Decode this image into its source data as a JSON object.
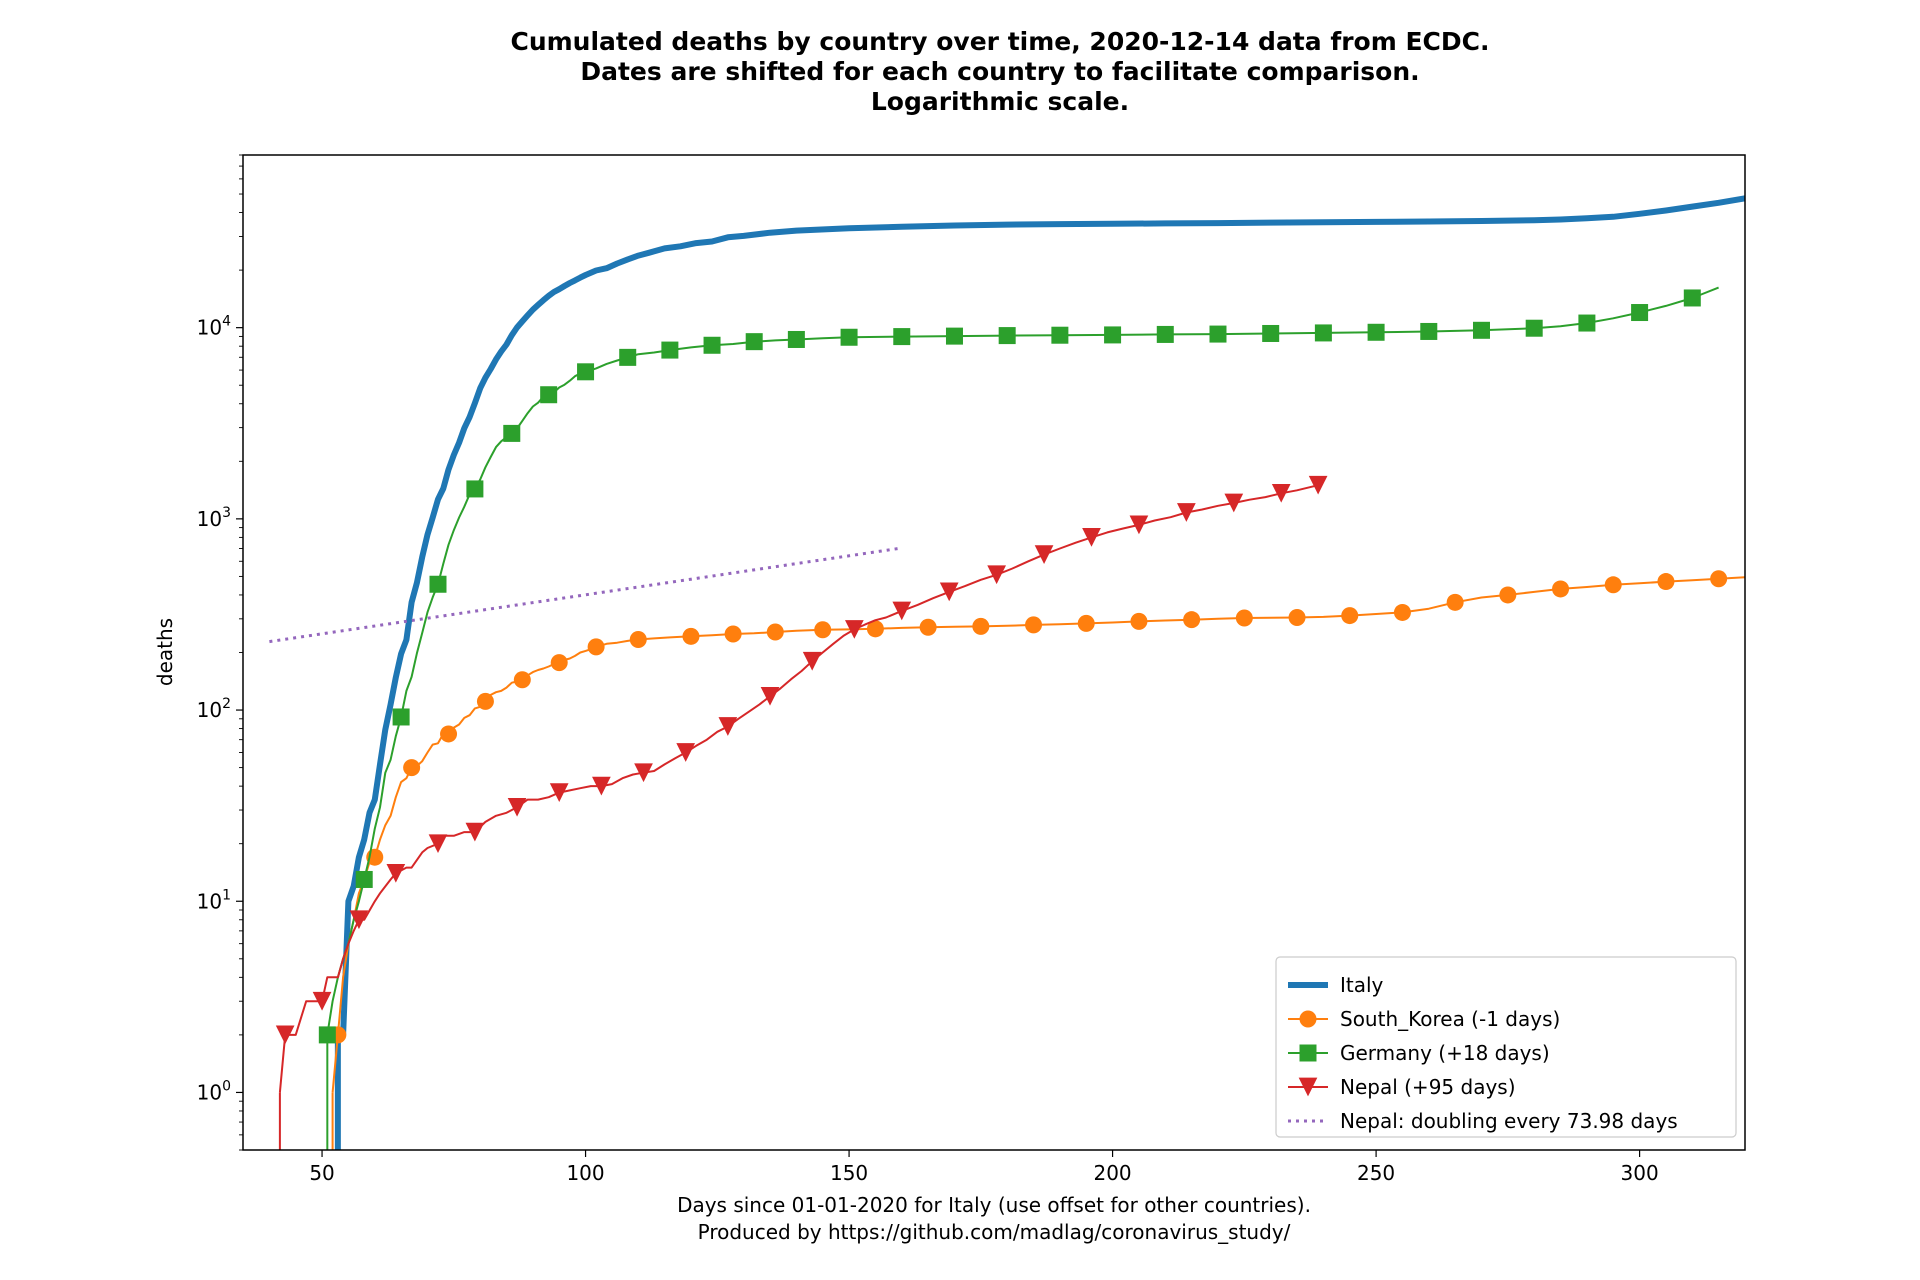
{
  "chart_data": {
    "type": "line",
    "title_lines": [
      "Cumulated deaths by country over time, 2020-12-14 data from ECDC.",
      "Dates are shifted for each country to facilitate comparison.",
      "Logarithmic scale."
    ],
    "xlabel_lines": [
      "Days since 01-01-2020 for Italy (use offset for other countries).",
      "Produced by https://github.com/madlag/coronavirus_study/"
    ],
    "ylabel": "deaths",
    "x_scale": "linear",
    "y_scale": "log",
    "xlim": [
      35,
      320
    ],
    "ylim": [
      0.5,
      80000
    ],
    "x_ticks": [
      50,
      100,
      150,
      200,
      250,
      300
    ],
    "x_tick_labels": [
      "50",
      "100",
      "150",
      "200",
      "250",
      "300"
    ],
    "y_ticks": [
      1,
      10,
      100,
      1000,
      10000
    ],
    "y_tick_labels": [
      {
        "base": "10",
        "exp": "0"
      },
      {
        "base": "10",
        "exp": "1"
      },
      {
        "base": "10",
        "exp": "2"
      },
      {
        "base": "10",
        "exp": "3"
      },
      {
        "base": "10",
        "exp": "4"
      }
    ],
    "grid": false,
    "legend_position": "lower-right",
    "series": [
      {
        "name": "Italy",
        "color": "#1f77b4",
        "marker": "none",
        "x": [
          53,
          54,
          55,
          56,
          57,
          58,
          59,
          60,
          61,
          62,
          63,
          64,
          65,
          66,
          67,
          68,
          69,
          70,
          71,
          72,
          73,
          74,
          75,
          76,
          77,
          78,
          79,
          80,
          81,
          82,
          83,
          84,
          85,
          86,
          87,
          88,
          89,
          90,
          91,
          92,
          93,
          94,
          95,
          96,
          97,
          98,
          99,
          100,
          102,
          104,
          106,
          108,
          110,
          112,
          115,
          118,
          121,
          124,
          127,
          130,
          135,
          140,
          150,
          160,
          170,
          180,
          190,
          200,
          210,
          220,
          230,
          240,
          250,
          260,
          270,
          280,
          285,
          290,
          295,
          300,
          305,
          310,
          315,
          320
        ],
        "y": [
          2,
          2,
          10,
          12,
          17,
          21,
          29,
          34,
          52,
          79,
          107,
          148,
          197,
          233,
          366,
          463,
          631,
          827,
          1016,
          1266,
          1441,
          1809,
          2158,
          2503,
          2978,
          3405,
          4032,
          4825,
          5476,
          6077,
          6820,
          7503,
          8165,
          9134,
          10023,
          10779,
          11591,
          12428,
          13155,
          13915,
          14681,
          15362,
          15887,
          16523,
          17127,
          17669,
          18279,
          18849,
          19899,
          20465,
          21645,
          22745,
          23822,
          24648,
          25969,
          26644,
          27682,
          28236,
          29684,
          30201,
          31368,
          32169,
          33072,
          33689,
          34223,
          34610,
          34818,
          34938,
          35101,
          35246,
          35435,
          35563,
          35725,
          35918,
          36140,
          36472,
          36801,
          37338,
          38000,
          39400,
          41000,
          43000,
          45000,
          47500
        ]
      },
      {
        "name": "South_Korea (-1 days)",
        "color": "#ff7f0e",
        "marker": "circle",
        "x": [
          52,
          53,
          54,
          55,
          56,
          57,
          58,
          59,
          60,
          61,
          62,
          63,
          64,
          65,
          66,
          67,
          68,
          69,
          70,
          71,
          72,
          73,
          74,
          75,
          76,
          77,
          78,
          79,
          80,
          81,
          82,
          83,
          84,
          85,
          86,
          87,
          88,
          89,
          90,
          91,
          92,
          93,
          94,
          95,
          96,
          97,
          98,
          99,
          100,
          101,
          102,
          104,
          106,
          108,
          110,
          113,
          116,
          120,
          124,
          128,
          132,
          136,
          140,
          145,
          150,
          155,
          160,
          165,
          170,
          175,
          180,
          185,
          190,
          195,
          200,
          205,
          210,
          215,
          220,
          225,
          230,
          235,
          240,
          245,
          250,
          255,
          260,
          265,
          270,
          275,
          280,
          285,
          290,
          295,
          300,
          305,
          310,
          315,
          320
        ],
        "y": [
          1,
          2,
          4,
          6,
          8,
          11,
          13,
          16,
          17,
          21,
          25,
          28,
          35,
          42,
          44,
          50,
          51,
          54,
          60,
          66,
          67,
          75,
          75,
          81,
          84,
          91,
          94,
          102,
          104,
          111,
          120,
          124,
          126,
          131,
          139,
          141,
          144,
          152,
          158,
          162,
          165,
          169,
          174,
          177,
          183,
          186,
          192,
          200,
          204,
          208,
          214,
          222,
          225,
          230,
          234,
          237,
          240,
          243,
          246,
          250,
          252,
          256,
          260,
          263,
          264,
          266,
          269,
          271,
          273,
          274,
          276,
          279,
          281,
          284,
          287,
          291,
          294,
          297,
          300,
          303,
          304,
          305,
          307,
          312,
          318,
          324,
          339,
          366,
          388,
          400,
          415,
          430,
          440,
          452,
          460,
          470,
          478,
          486,
          495
        ]
      },
      {
        "name": "Germany (+18 days)",
        "color": "#2ca02c",
        "marker": "square",
        "x": [
          51,
          52,
          53,
          54,
          55,
          56,
          57,
          58,
          59,
          60,
          61,
          62,
          63,
          64,
          65,
          66,
          67,
          68,
          69,
          70,
          71,
          72,
          73,
          74,
          75,
          76,
          77,
          78,
          79,
          80,
          81,
          82,
          83,
          84,
          85,
          86,
          87,
          88,
          89,
          90,
          91,
          92,
          93,
          94,
          95,
          96,
          97,
          98,
          99,
          100,
          102,
          104,
          106,
          108,
          110,
          113,
          116,
          120,
          124,
          128,
          132,
          136,
          140,
          145,
          150,
          160,
          170,
          180,
          190,
          200,
          210,
          220,
          230,
          240,
          250,
          260,
          270,
          280,
          285,
          290,
          295,
          300,
          305,
          310,
          315
        ],
        "y": [
          2,
          3,
          4,
          5,
          6,
          8,
          10,
          13,
          17,
          24,
          31,
          47,
          55,
          73,
          92,
          126,
          149,
          198,
          253,
          325,
          389,
          455,
          583,
          732,
          872,
          1017,
          1158,
          1342,
          1434,
          1607,
          1861,
          2107,
          2373,
          2544,
          2673,
          2799,
          2969,
          3254,
          3569,
          3868,
          4052,
          4352,
          4459,
          4586,
          4862,
          5033,
          5279,
          5575,
          5760,
          5877,
          6126,
          6467,
          6735,
          6993,
          7266,
          7417,
          7634,
          7881,
          8090,
          8216,
          8450,
          8581,
          8674,
          8809,
          8910,
          8981,
          9032,
          9090,
          9131,
          9164,
          9217,
          9257,
          9324,
          9386,
          9460,
          9554,
          9688,
          9934,
          10183,
          10572,
          11200,
          12000,
          13000,
          14300,
          16200
        ]
      },
      {
        "name": "Nepal (+95 days)",
        "color": "#d62728",
        "marker": "triangle-down",
        "x": [
          42,
          43,
          45,
          47,
          48,
          50,
          51,
          53,
          54,
          55,
          56,
          57,
          58,
          60,
          61,
          63,
          64,
          66,
          67,
          69,
          70,
          72,
          73,
          75,
          77,
          79,
          81,
          83,
          85,
          87,
          89,
          91,
          93,
          95,
          97,
          99,
          101,
          103,
          105,
          107,
          109,
          111,
          113,
          115,
          117,
          119,
          121,
          123,
          125,
          127,
          129,
          131,
          133,
          135,
          137,
          139,
          141,
          143,
          145,
          147,
          149,
          151,
          153,
          155,
          157,
          160,
          163,
          166,
          169,
          172,
          175,
          178,
          181,
          184,
          187,
          190,
          193,
          196,
          199,
          202,
          205,
          208,
          211,
          214,
          217,
          220,
          223,
          226,
          229,
          232,
          235,
          239
        ],
        "y": [
          1,
          2,
          2,
          3,
          3,
          3,
          4,
          4,
          5,
          6,
          7,
          8,
          8,
          10,
          11,
          13,
          14,
          15,
          15,
          18,
          19,
          20,
          22,
          22,
          23,
          23,
          26,
          28,
          29,
          31,
          34,
          34,
          35,
          37,
          38,
          39,
          40,
          40,
          41,
          44,
          46,
          47,
          48,
          52,
          56,
          60,
          65,
          70,
          77,
          82,
          90,
          98,
          107,
          118,
          130,
          145,
          160,
          180,
          200,
          222,
          245,
          264,
          280,
          295,
          305,
          330,
          355,
          385,
          415,
          445,
          480,
          510,
          550,
          600,
          650,
          700,
          750,
          800,
          850,
          890,
          930,
          980,
          1020,
          1080,
          1120,
          1170,
          1210,
          1260,
          1300,
          1360,
          1410,
          1500
        ]
      },
      {
        "name": "Nepal: doubling every 73.98 days",
        "color": "#9467bd",
        "marker": "none",
        "style": "dotted",
        "x": [
          40,
          160
        ],
        "y": [
          228,
          704
        ]
      }
    ]
  }
}
